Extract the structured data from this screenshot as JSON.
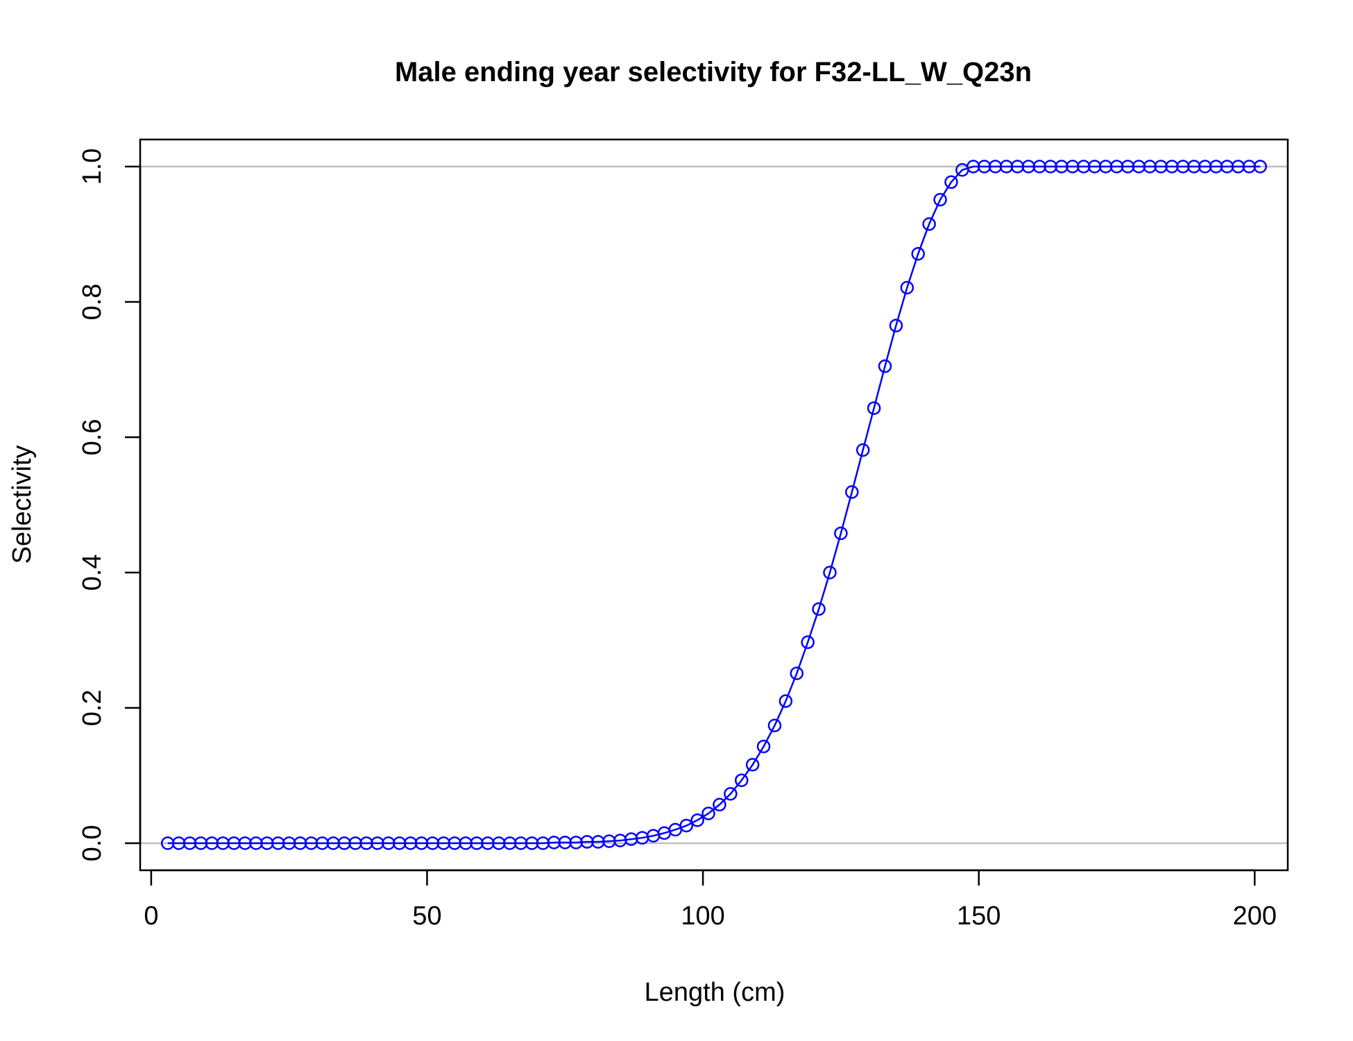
{
  "chart_data": {
    "type": "line",
    "title": "Male ending year selectivity for F32-LL_W_Q23n",
    "xlabel": "Length (cm)",
    "ylabel": "Selectivity",
    "xlim": [
      -2,
      206
    ],
    "ylim": [
      -0.04,
      1.04
    ],
    "xticks": [
      0,
      50,
      100,
      150,
      200
    ],
    "xtick_labels": [
      "0",
      "50",
      "100",
      "150",
      "200"
    ],
    "yticks": [
      0,
      0.2,
      0.4,
      0.6,
      0.8,
      1.0
    ],
    "ytick_labels": [
      "0.0",
      "0.2",
      "0.4",
      "0.6",
      "0.8",
      "1.0"
    ],
    "reference_lines": [
      0,
      1
    ],
    "reference_line_color": "#bebebe",
    "series_color": "#0000ff",
    "marker": "open-circle",
    "grid": false,
    "series": [
      {
        "x": [
          3,
          5,
          7,
          9,
          11,
          13,
          15,
          17,
          19,
          21,
          23,
          25,
          27,
          29,
          31,
          33,
          35,
          37,
          39,
          41,
          43,
          45,
          47,
          49,
          51,
          53,
          55,
          57,
          59,
          61,
          63,
          65,
          67,
          69,
          71,
          73,
          75,
          77,
          79,
          81,
          83,
          85,
          87,
          89,
          91,
          93,
          95,
          97,
          99,
          101,
          103,
          105,
          107,
          109,
          111,
          113,
          115,
          117,
          119,
          121,
          123,
          125,
          127,
          129,
          131,
          133,
          135,
          137,
          139,
          141,
          143,
          145,
          147,
          149,
          151,
          153,
          155,
          157,
          159,
          161,
          163,
          165,
          167,
          169,
          171,
          173,
          175,
          177,
          179,
          181,
          183,
          185,
          187,
          189,
          191,
          193,
          195,
          197,
          199,
          201
        ],
        "y": [
          0,
          0,
          0,
          0,
          0,
          0,
          0,
          0,
          0,
          0,
          0,
          0,
          0,
          0,
          0,
          0,
          0,
          0,
          0,
          0,
          0,
          0,
          0,
          0,
          0,
          0,
          0,
          0,
          0,
          0,
          0,
          0,
          0,
          0,
          0,
          0.001,
          0.001,
          0.001,
          0.002,
          0.002,
          0.003,
          0.004,
          0.006,
          0.008,
          0.011,
          0.015,
          0.02,
          0.026,
          0.034,
          0.044,
          0.057,
          0.073,
          0.093,
          0.116,
          0.143,
          0.174,
          0.21,
          0.251,
          0.297,
          0.346,
          0.4,
          0.458,
          0.519,
          0.581,
          0.643,
          0.705,
          0.765,
          0.821,
          0.871,
          0.915,
          0.951,
          0.977,
          0.995,
          1,
          1,
          1,
          1,
          1,
          1,
          1,
          1,
          1,
          1,
          1,
          1,
          1,
          1,
          1,
          1,
          1,
          1,
          1,
          1,
          1,
          1,
          1,
          1,
          1,
          1,
          1
        ]
      }
    ]
  }
}
